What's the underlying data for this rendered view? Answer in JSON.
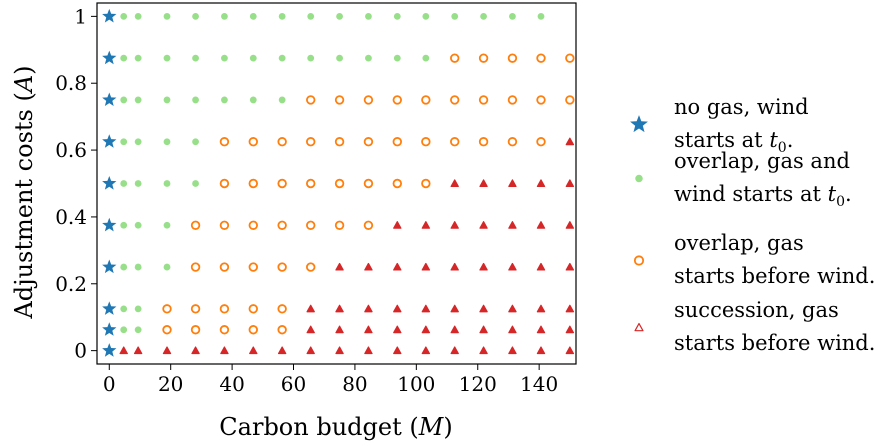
{
  "chart_data": {
    "type": "scatter",
    "xlabel": "Carbon budget ($\\bar{M}$)",
    "ylabel": "Adjustment costs ($A$)",
    "xlabel_parts": [
      "Carbon budget (",
      "M",
      ")"
    ],
    "ylabel_parts": [
      "Adjustment costs (",
      "A",
      ")"
    ],
    "xlim": [
      -4,
      152
    ],
    "ylim": [
      -0.04,
      1.04
    ],
    "xticks": [
      0,
      20,
      40,
      60,
      80,
      100,
      120,
      140
    ],
    "yticks": [
      0,
      0.2,
      0.4,
      0.6,
      0.8,
      1
    ],
    "xtick_labels": [
      "0",
      "20",
      "40",
      "60",
      "80",
      "100",
      "120",
      "140"
    ],
    "ytick_labels": [
      "0",
      "0.2",
      "0.4",
      "0.6",
      "0.8",
      "1"
    ],
    "grid": false,
    "legend_position": "right-outside",
    "series": [
      {
        "name": "no gas, wind starts at t0.",
        "legend_lines": [
          [
            "no gas, wind"
          ],
          [
            "starts at ",
            "t",
            "0",
            "."
          ]
        ],
        "marker": "star",
        "color": "#1f77b4",
        "points": [
          [
            0,
            1
          ],
          [
            0,
            0.875
          ],
          [
            0,
            0.75
          ],
          [
            0,
            0.625
          ],
          [
            0,
            0.5
          ],
          [
            0,
            0.375
          ],
          [
            0,
            0.25
          ],
          [
            0,
            0.125
          ],
          [
            0,
            0.0625
          ],
          [
            0,
            0
          ]
        ]
      },
      {
        "name": "overlap, gas and wind starts at t0.",
        "legend_lines": [
          [
            "overlap, gas and"
          ],
          [
            "wind starts at ",
            "t",
            "0",
            "."
          ]
        ],
        "marker": "dot",
        "color": "#98df8a",
        "points": [
          [
            4.7,
            1
          ],
          [
            9.4,
            1
          ],
          [
            18.8,
            1
          ],
          [
            28.1,
            1
          ],
          [
            37.5,
            1
          ],
          [
            46.9,
            1
          ],
          [
            56.3,
            1
          ],
          [
            65.6,
            1
          ],
          [
            75,
            1
          ],
          [
            84.4,
            1
          ],
          [
            93.8,
            1
          ],
          [
            103.1,
            1
          ],
          [
            112.5,
            1
          ],
          [
            121.9,
            1
          ],
          [
            131.3,
            1
          ],
          [
            140.6,
            1
          ],
          [
            4.7,
            0.875
          ],
          [
            9.4,
            0.875
          ],
          [
            18.8,
            0.875
          ],
          [
            28.1,
            0.875
          ],
          [
            37.5,
            0.875
          ],
          [
            46.9,
            0.875
          ],
          [
            56.3,
            0.875
          ],
          [
            65.6,
            0.875
          ],
          [
            75,
            0.875
          ],
          [
            84.4,
            0.875
          ],
          [
            93.8,
            0.875
          ],
          [
            103.1,
            0.875
          ],
          [
            4.7,
            0.75
          ],
          [
            9.4,
            0.75
          ],
          [
            18.8,
            0.75
          ],
          [
            28.1,
            0.75
          ],
          [
            37.5,
            0.75
          ],
          [
            46.9,
            0.75
          ],
          [
            56.3,
            0.75
          ],
          [
            4.7,
            0.625
          ],
          [
            9.4,
            0.625
          ],
          [
            18.8,
            0.625
          ],
          [
            28.1,
            0.625
          ],
          [
            4.7,
            0.5
          ],
          [
            9.4,
            0.5
          ],
          [
            18.8,
            0.5
          ],
          [
            28.1,
            0.5
          ],
          [
            4.7,
            0.375
          ],
          [
            9.4,
            0.375
          ],
          [
            18.8,
            0.375
          ],
          [
            4.7,
            0.25
          ],
          [
            9.4,
            0.25
          ],
          [
            18.8,
            0.25
          ],
          [
            4.7,
            0.125
          ],
          [
            9.4,
            0.125
          ],
          [
            4.7,
            0.0625
          ],
          [
            9.4,
            0.0625
          ]
        ]
      },
      {
        "name": "overlap, gas starts before wind.",
        "legend_lines": [
          [
            "overlap, gas"
          ],
          [
            "starts before wind."
          ]
        ],
        "marker": "ring",
        "color": "#ff7f0e",
        "points": [
          [
            112.5,
            0.875
          ],
          [
            121.9,
            0.875
          ],
          [
            131.3,
            0.875
          ],
          [
            140.6,
            0.875
          ],
          [
            150,
            0.875
          ],
          [
            65.6,
            0.75
          ],
          [
            75,
            0.75
          ],
          [
            84.4,
            0.75
          ],
          [
            93.8,
            0.75
          ],
          [
            103.1,
            0.75
          ],
          [
            112.5,
            0.75
          ],
          [
            121.9,
            0.75
          ],
          [
            131.3,
            0.75
          ],
          [
            140.6,
            0.75
          ],
          [
            150,
            0.75
          ],
          [
            37.5,
            0.625
          ],
          [
            46.9,
            0.625
          ],
          [
            56.3,
            0.625
          ],
          [
            65.6,
            0.625
          ],
          [
            75,
            0.625
          ],
          [
            84.4,
            0.625
          ],
          [
            93.8,
            0.625
          ],
          [
            103.1,
            0.625
          ],
          [
            112.5,
            0.625
          ],
          [
            121.9,
            0.625
          ],
          [
            131.3,
            0.625
          ],
          [
            140.6,
            0.625
          ],
          [
            37.5,
            0.5
          ],
          [
            46.9,
            0.5
          ],
          [
            56.3,
            0.5
          ],
          [
            65.6,
            0.5
          ],
          [
            75,
            0.5
          ],
          [
            84.4,
            0.5
          ],
          [
            93.8,
            0.5
          ],
          [
            103.1,
            0.5
          ],
          [
            28.1,
            0.375
          ],
          [
            37.5,
            0.375
          ],
          [
            46.9,
            0.375
          ],
          [
            56.3,
            0.375
          ],
          [
            65.6,
            0.375
          ],
          [
            75,
            0.375
          ],
          [
            84.4,
            0.375
          ],
          [
            28.1,
            0.25
          ],
          [
            37.5,
            0.25
          ],
          [
            46.9,
            0.25
          ],
          [
            56.3,
            0.25
          ],
          [
            65.6,
            0.25
          ],
          [
            18.8,
            0.125
          ],
          [
            28.1,
            0.125
          ],
          [
            37.5,
            0.125
          ],
          [
            46.9,
            0.125
          ],
          [
            56.3,
            0.125
          ],
          [
            18.8,
            0.0625
          ],
          [
            28.1,
            0.0625
          ],
          [
            37.5,
            0.0625
          ],
          [
            46.9,
            0.0625
          ],
          [
            56.3,
            0.0625
          ]
        ]
      },
      {
        "name": "succession, gas starts before wind.",
        "legend_lines": [
          [
            "succession, gas"
          ],
          [
            "starts before wind."
          ]
        ],
        "marker": "triangle",
        "color": "#d62728",
        "points": [
          [
            150,
            0.625
          ],
          [
            112.5,
            0.5
          ],
          [
            121.9,
            0.5
          ],
          [
            131.3,
            0.5
          ],
          [
            140.6,
            0.5
          ],
          [
            150,
            0.5
          ],
          [
            93.8,
            0.375
          ],
          [
            103.1,
            0.375
          ],
          [
            112.5,
            0.375
          ],
          [
            121.9,
            0.375
          ],
          [
            131.3,
            0.375
          ],
          [
            140.6,
            0.375
          ],
          [
            150,
            0.375
          ],
          [
            75,
            0.25
          ],
          [
            84.4,
            0.25
          ],
          [
            93.8,
            0.25
          ],
          [
            103.1,
            0.25
          ],
          [
            112.5,
            0.25
          ],
          [
            121.9,
            0.25
          ],
          [
            131.3,
            0.25
          ],
          [
            140.6,
            0.25
          ],
          [
            150,
            0.25
          ],
          [
            65.6,
            0.125
          ],
          [
            75,
            0.125
          ],
          [
            84.4,
            0.125
          ],
          [
            93.8,
            0.125
          ],
          [
            103.1,
            0.125
          ],
          [
            112.5,
            0.125
          ],
          [
            121.9,
            0.125
          ],
          [
            131.3,
            0.125
          ],
          [
            140.6,
            0.125
          ],
          [
            150,
            0.125
          ],
          [
            65.6,
            0.0625
          ],
          [
            75,
            0.0625
          ],
          [
            84.4,
            0.0625
          ],
          [
            93.8,
            0.0625
          ],
          [
            103.1,
            0.0625
          ],
          [
            112.5,
            0.0625
          ],
          [
            121.9,
            0.0625
          ],
          [
            131.3,
            0.0625
          ],
          [
            140.6,
            0.0625
          ],
          [
            150,
            0.0625
          ],
          [
            4.7,
            0
          ],
          [
            9.4,
            0
          ],
          [
            18.8,
            0
          ],
          [
            28.1,
            0
          ],
          [
            37.5,
            0
          ],
          [
            46.9,
            0
          ],
          [
            56.3,
            0
          ],
          [
            65.6,
            0
          ],
          [
            75,
            0
          ],
          [
            84.4,
            0
          ],
          [
            93.8,
            0
          ],
          [
            103.1,
            0
          ],
          [
            112.5,
            0
          ],
          [
            121.9,
            0
          ],
          [
            131.3,
            0
          ],
          [
            140.6,
            0
          ],
          [
            150,
            0
          ]
        ]
      }
    ]
  }
}
